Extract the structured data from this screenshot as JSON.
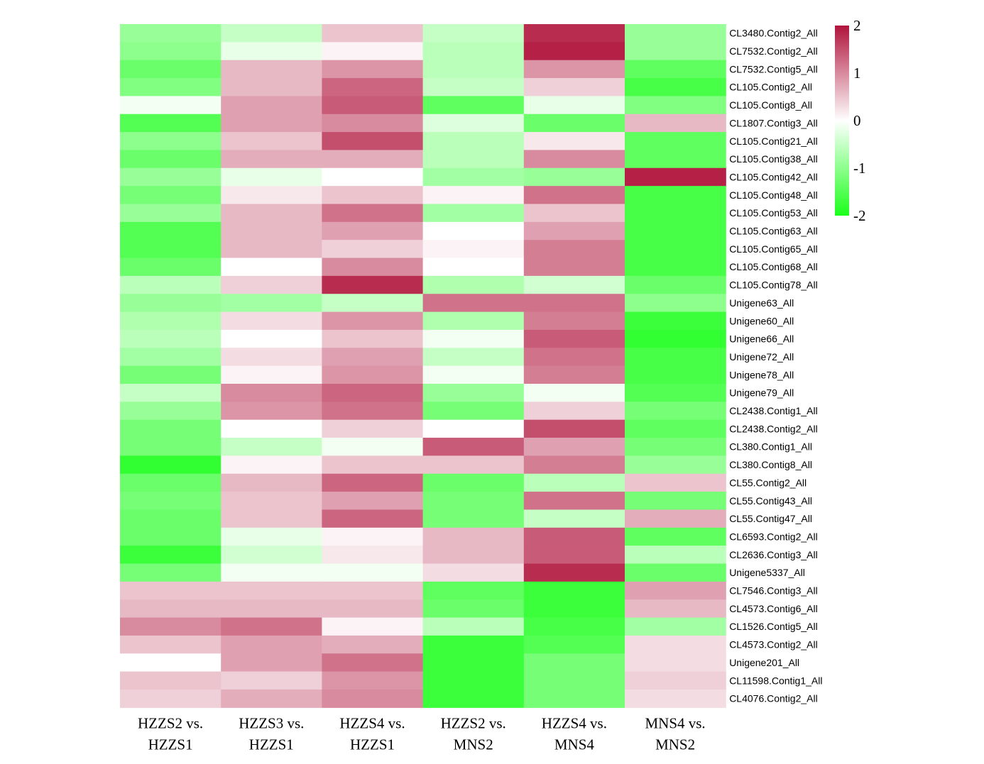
{
  "chart_data": {
    "type": "heatmap",
    "columns": [
      [
        "HZZS2 vs.",
        "HZZS1"
      ],
      [
        "HZZS3 vs.",
        "HZZS1"
      ],
      [
        "HZZS4 vs.",
        "HZZS1"
      ],
      [
        "HZZS2 vs.",
        "MNS2"
      ],
      [
        "HZZS4 vs.",
        "MNS4"
      ],
      [
        "MNS4 vs.",
        "MNS2"
      ]
    ],
    "rows": [
      "CL3480.Contig2_All",
      "CL7532.Contig2_All",
      "CL7532.Contig5_All",
      "CL105.Contig2_All",
      "CL105.Contig8_All",
      "CL1807.Contig3_All",
      "CL105.Contig21_All",
      "CL105.Contig38_All",
      "CL105.Contig42_All",
      "CL105.Contig48_All",
      "CL105.Contig53_All",
      "CL105.Contig63_All",
      "CL105.Contig65_All",
      "CL105.Contig68_All",
      "CL105.Contig78_All",
      "Unigene63_All",
      "Unigene60_All",
      "Unigene66_All",
      "Unigene72_All",
      "Unigene78_All",
      "Unigene79_All",
      "CL2438.Contig1_All",
      "CL2438.Contig2_All",
      "CL380.Contig1_All",
      "CL380.Contig8_All",
      "CL55.Contig2_All",
      "CL55.Contig43_All",
      "CL55.Contig47_All",
      "CL6593.Contig2_All",
      "CL2636.Contig3_All",
      "Unigene5337_All",
      "CL7546.Contig3_All",
      "CL4573.Contig6_All",
      "CL1526.Contig5_All",
      "CL4573.Contig2_All",
      "Unigene201_All",
      "CL11598.Contig1_All",
      "CL4076.Contig2_All"
    ],
    "values": [
      [
        -0.9,
        -0.5,
        0.5,
        -0.5,
        1.8,
        -0.9
      ],
      [
        -1.0,
        -0.2,
        0.1,
        -0.6,
        1.9,
        -0.9
      ],
      [
        -1.3,
        0.6,
        0.9,
        -0.6,
        0.9,
        -1.4
      ],
      [
        -1.1,
        0.6,
        1.3,
        -0.5,
        0.4,
        -1.6
      ],
      [
        -0.1,
        0.8,
        1.4,
        -1.4,
        -0.2,
        -1.1
      ],
      [
        -1.5,
        0.8,
        1.0,
        -0.3,
        -1.3,
        0.6
      ],
      [
        -1.0,
        0.5,
        1.5,
        -0.6,
        0.2,
        -1.4
      ],
      [
        -1.3,
        0.7,
        0.7,
        -0.6,
        1.0,
        -1.4
      ],
      [
        -0.9,
        -0.2,
        0.0,
        -0.8,
        -0.9,
        1.9
      ],
      [
        -1.2,
        0.2,
        0.5,
        0.1,
        1.2,
        -1.6
      ],
      [
        -0.9,
        0.6,
        1.2,
        -0.8,
        0.5,
        -1.6
      ],
      [
        -1.5,
        0.6,
        0.8,
        0.0,
        0.8,
        -1.6
      ],
      [
        -1.5,
        0.6,
        0.4,
        0.1,
        1.1,
        -1.6
      ],
      [
        -1.3,
        0.0,
        1.0,
        0.0,
        1.1,
        -1.6
      ],
      [
        -0.6,
        0.4,
        1.8,
        -0.7,
        -0.4,
        -1.3
      ],
      [
        -0.9,
        -0.8,
        -0.5,
        1.2,
        1.2,
        -1.0
      ],
      [
        -0.7,
        0.3,
        0.9,
        -0.7,
        1.1,
        -1.7
      ],
      [
        -0.6,
        0.0,
        0.5,
        -0.1,
        1.4,
        -1.8
      ],
      [
        -0.8,
        0.3,
        0.8,
        -0.5,
        1.2,
        -1.6
      ],
      [
        -1.2,
        0.1,
        0.9,
        -0.1,
        1.1,
        -1.6
      ],
      [
        -0.5,
        1.0,
        1.3,
        -0.9,
        -0.1,
        -1.5
      ],
      [
        -0.9,
        0.9,
        1.2,
        -1.2,
        0.4,
        -1.2
      ],
      [
        -1.2,
        0.0,
        0.4,
        0.0,
        1.5,
        -1.4
      ],
      [
        -1.2,
        -0.5,
        -0.1,
        1.4,
        0.8,
        -1.2
      ],
      [
        -1.8,
        0.1,
        0.5,
        0.5,
        1.1,
        -0.9
      ],
      [
        -1.3,
        0.6,
        1.3,
        -1.3,
        -0.6,
        0.5
      ],
      [
        -1.2,
        0.5,
        0.8,
        -1.2,
        1.2,
        -1.2
      ],
      [
        -1.3,
        0.5,
        1.3,
        -1.2,
        -0.5,
        0.7
      ],
      [
        -1.3,
        -0.2,
        0.1,
        0.6,
        1.4,
        -1.4
      ],
      [
        -1.7,
        -0.4,
        0.2,
        0.6,
        1.4,
        -0.6
      ],
      [
        -1.2,
        -0.1,
        -0.1,
        0.3,
        1.8,
        -1.3
      ],
      [
        0.5,
        0.5,
        0.5,
        -1.4,
        -1.7,
        0.8
      ],
      [
        0.6,
        0.6,
        0.6,
        -1.3,
        -1.7,
        0.6
      ],
      [
        1.0,
        1.2,
        0.1,
        -0.6,
        -1.6,
        -0.8
      ],
      [
        0.5,
        0.8,
        0.7,
        -1.7,
        -1.5,
        0.3
      ],
      [
        0.0,
        0.8,
        1.2,
        -1.7,
        -1.2,
        0.3
      ],
      [
        0.5,
        0.4,
        0.9,
        -1.7,
        -1.2,
        0.4
      ],
      [
        0.4,
        0.7,
        1.0,
        -1.7,
        -1.2,
        0.3
      ]
    ],
    "legend": {
      "ticks": [
        "2",
        "1",
        "0",
        "-1",
        "-2"
      ],
      "min": -2,
      "max": 2,
      "high_color": "#b0143c",
      "mid_color": "#ffffff",
      "low_color": "#1aff1a"
    }
  }
}
